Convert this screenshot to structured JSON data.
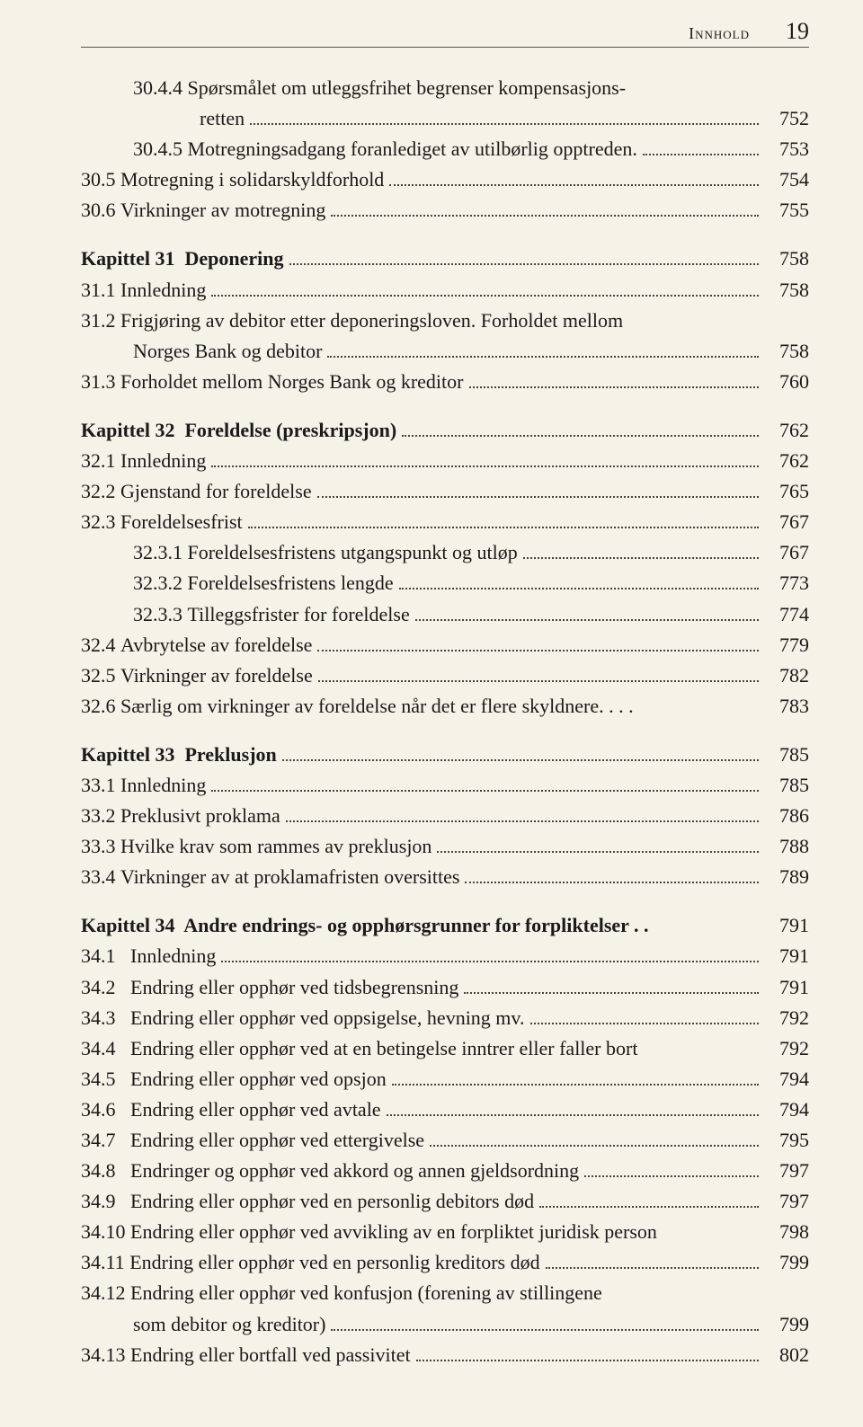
{
  "header": {
    "label": "Innhold",
    "page_number": "19"
  },
  "toc": [
    {
      "indent": 1,
      "num": "30.4.4 ",
      "title": "Spørsmålet om utleggsfrihet begrenser kompensasjons-",
      "page": "",
      "nodots": true
    },
    {
      "indent": 2,
      "num": "",
      "title": "retten",
      "page": "752"
    },
    {
      "indent": 1,
      "num": "30.4.5 ",
      "title": "Motregningsadgang foranlediget av utilbørlig opptreden.",
      "page": "753"
    },
    {
      "indent": 0,
      "num": "30.5 ",
      "title": "Motregning i solidarskyldforhold",
      "page": "754"
    },
    {
      "indent": 0,
      "num": "30.6 ",
      "title": "Virkninger av motregning",
      "page": "755"
    },
    {
      "gap": true
    },
    {
      "indent": 0,
      "num": "",
      "title": "Kapittel 31  Deponering",
      "page": "758",
      "bold": true
    },
    {
      "indent": 0,
      "num": "31.1 ",
      "title": "Innledning",
      "page": "758"
    },
    {
      "indent": 0,
      "num": "31.2 ",
      "title": "Frigjøring av debitor etter deponeringsloven. Forholdet mellom",
      "page": "",
      "nodots": true
    },
    {
      "indent": 1,
      "num": "",
      "title": "Norges Bank og debitor",
      "page": "758"
    },
    {
      "indent": 0,
      "num": "31.3 ",
      "title": "Forholdet mellom Norges Bank og kreditor",
      "page": "760"
    },
    {
      "gap": true
    },
    {
      "indent": 0,
      "num": "",
      "title": "Kapittel 32  Foreldelse (preskripsjon)",
      "page": "762",
      "bold": true
    },
    {
      "indent": 0,
      "num": "32.1 ",
      "title": "Innledning",
      "page": "762"
    },
    {
      "indent": 0,
      "num": "32.2 ",
      "title": "Gjenstand for foreldelse",
      "page": "765"
    },
    {
      "indent": 0,
      "num": "32.3 ",
      "title": "Foreldelsesfrist",
      "page": "767"
    },
    {
      "indent": 1,
      "num": "32.3.1 ",
      "title": "Foreldelsesfristens utgangspunkt og utløp",
      "page": "767"
    },
    {
      "indent": 1,
      "num": "32.3.2 ",
      "title": "Foreldelsesfristens lengde",
      "page": "773"
    },
    {
      "indent": 1,
      "num": "32.3.3 ",
      "title": "Tilleggsfrister for foreldelse",
      "page": "774"
    },
    {
      "indent": 0,
      "num": "32.4 ",
      "title": "Avbrytelse av foreldelse",
      "page": "779"
    },
    {
      "indent": 0,
      "num": "32.5 ",
      "title": "Virkninger av foreldelse",
      "page": "782"
    },
    {
      "indent": 0,
      "num": "32.6 ",
      "title": "Særlig om virkninger av foreldelse når det er flere skyldnere. . . .",
      "page": "783",
      "nodots": true
    },
    {
      "gap": true
    },
    {
      "indent": 0,
      "num": "",
      "title": "Kapittel 33  Preklusjon",
      "page": "785",
      "bold": true
    },
    {
      "indent": 0,
      "num": "33.1 ",
      "title": "Innledning",
      "page": "785"
    },
    {
      "indent": 0,
      "num": "33.2 ",
      "title": "Preklusivt proklama",
      "page": "786"
    },
    {
      "indent": 0,
      "num": "33.3 ",
      "title": "Hvilke krav som rammes av preklusjon",
      "page": "788"
    },
    {
      "indent": 0,
      "num": "33.4 ",
      "title": "Virkninger av at proklamafristen oversittes",
      "page": "789"
    },
    {
      "gap": true
    },
    {
      "indent": 0,
      "num": "",
      "title": "Kapittel 34  Andre endrings- og opphørsgrunner for forpliktelser . .",
      "page": "791",
      "bold": true,
      "nodots": true
    },
    {
      "indent": 0,
      "num": "34.1   ",
      "title": "Innledning",
      "page": "791"
    },
    {
      "indent": 0,
      "num": "34.2   ",
      "title": "Endring eller opphør ved tidsbegrensning",
      "page": "791"
    },
    {
      "indent": 0,
      "num": "34.3   ",
      "title": "Endring eller opphør ved oppsigelse, hevning mv.",
      "page": "792"
    },
    {
      "indent": 0,
      "num": "34.4   ",
      "title": "Endring eller opphør ved at en betingelse inntrer eller faller bort",
      "page": "792",
      "nodots": true
    },
    {
      "indent": 0,
      "num": "34.5   ",
      "title": "Endring eller opphør ved opsjon",
      "page": "794"
    },
    {
      "indent": 0,
      "num": "34.6   ",
      "title": "Endring eller opphør ved avtale",
      "page": "794"
    },
    {
      "indent": 0,
      "num": "34.7   ",
      "title": "Endring eller opphør ved ettergivelse",
      "page": "795"
    },
    {
      "indent": 0,
      "num": "34.8   ",
      "title": "Endringer og opphør ved akkord og annen gjeldsordning",
      "page": "797"
    },
    {
      "indent": 0,
      "num": "34.9   ",
      "title": "Endring eller opphør ved en personlig debitors død",
      "page": "797"
    },
    {
      "indent": 0,
      "num": "34.10 ",
      "title": "Endring eller opphør ved avvikling av en forpliktet juridisk person",
      "page": "798",
      "nodots": true
    },
    {
      "indent": 0,
      "num": "34.11 ",
      "title": "Endring eller opphør ved en personlig kreditors død",
      "page": "799"
    },
    {
      "indent": 0,
      "num": "34.12 ",
      "title": "Endring eller opphør ved konfusjon (forening av stillingene",
      "page": "",
      "nodots": true
    },
    {
      "indent": 3,
      "num": "",
      "title": "som debitor og kreditor)",
      "page": "799"
    },
    {
      "indent": 0,
      "num": "34.13 ",
      "title": "Endring eller bortfall ved passivitet",
      "page": "802"
    }
  ]
}
